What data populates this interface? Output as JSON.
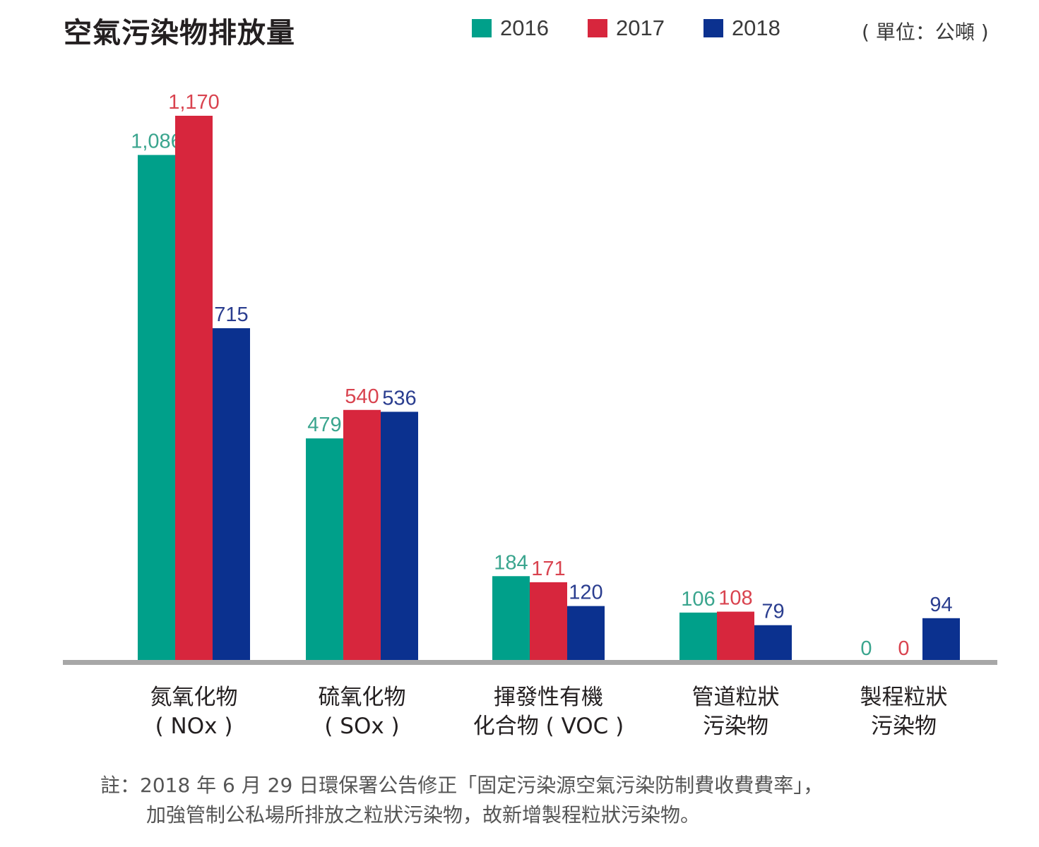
{
  "chart_data": {
    "type": "bar",
    "title": "空氣污染物排放量",
    "unit": "( 單位：公噸 )",
    "categories": [
      [
        "氮氧化物",
        "( NOx )"
      ],
      [
        "硫氧化物",
        "( SOx )"
      ],
      [
        "揮發性有機",
        "化合物 ( VOC )"
      ],
      [
        "管道粒狀",
        "污染物"
      ],
      [
        "製程粒狀",
        "污染物"
      ]
    ],
    "series": [
      {
        "name": "2016",
        "color": "#00a08a",
        "values": [
          1086,
          479,
          184,
          106,
          0
        ],
        "labels": [
          "1,086",
          "479",
          "184",
          "106",
          "0"
        ]
      },
      {
        "name": "2017",
        "color": "#d7263d",
        "values": [
          1170,
          540,
          171,
          108,
          0
        ],
        "labels": [
          "1,170",
          "540",
          "171",
          "108",
          "0"
        ]
      },
      {
        "name": "2018",
        "color": "#0b318f",
        "values": [
          715,
          536,
          120,
          79,
          94
        ],
        "labels": [
          "715",
          "536",
          "120",
          "79",
          "94"
        ]
      }
    ],
    "ylim": [
      0,
      1200
    ],
    "legend": "top-right",
    "grid": false,
    "label_colors": [
      "#3aa58e",
      "#d9434f",
      "#2a3d8f"
    ]
  },
  "note": {
    "line1": "註：2018 年 6 月 29 日環保署公告修正「固定污染源空氣污染防制費收費費率」，",
    "line2": "加強管制公私場所排放之粒狀污染物，故新增製程粒狀污染物。"
  }
}
